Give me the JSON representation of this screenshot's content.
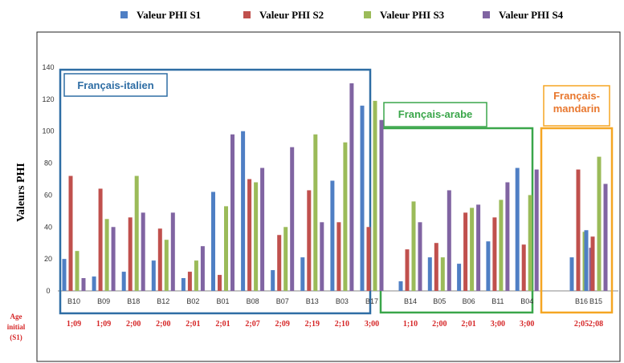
{
  "chart_data": {
    "type": "bar",
    "ylabel": "Valeurs PHI",
    "ylim": [
      0,
      140
    ],
    "yticks": [
      0,
      20,
      40,
      60,
      80,
      100,
      120,
      140
    ],
    "grid": false,
    "legend_position": "top",
    "series": [
      {
        "name": "Valeur PHI S1",
        "color": "#4f7fc4"
      },
      {
        "name": "Valeur PHI S2",
        "color": "#c0504d"
      },
      {
        "name": "Valeur PHI S3",
        "color": "#9bbb59"
      },
      {
        "name": "Valeur PHI S4",
        "color": "#8064a2"
      }
    ],
    "age_label_lines": [
      "Age",
      "initial",
      "(S1)"
    ],
    "groups": [
      {
        "label_lines": [
          "Français-italien"
        ],
        "color": "#2e6da4",
        "categories": [
          {
            "name": "B10",
            "age": "1;09",
            "values": [
              20,
              72,
              25,
              8
            ]
          },
          {
            "name": "B09",
            "age": "1;09",
            "values": [
              9,
              64,
              45,
              40
            ]
          },
          {
            "name": "B18",
            "age": "2;00",
            "values": [
              12,
              46,
              72,
              49
            ]
          },
          {
            "name": "B12",
            "age": "2;00",
            "values": [
              19,
              39,
              32,
              49
            ]
          },
          {
            "name": "B02",
            "age": "2;01",
            "values": [
              8,
              12,
              19,
              28
            ]
          },
          {
            "name": "B01",
            "age": "2;01",
            "values": [
              62,
              10,
              53,
              98
            ]
          },
          {
            "name": "B08",
            "age": "2;07",
            "values": [
              100,
              70,
              68,
              77
            ]
          },
          {
            "name": "B07",
            "age": "2;09",
            "values": [
              13,
              35,
              40,
              90
            ]
          },
          {
            "name": "B13",
            "age": "2;19",
            "values": [
              21,
              63,
              98,
              43
            ]
          },
          {
            "name": "B03",
            "age": "2;10",
            "values": [
              69,
              43,
              93,
              130
            ]
          },
          {
            "name": "B17",
            "age": "3;00",
            "values": [
              116,
              40,
              119,
              107
            ]
          }
        ]
      },
      {
        "label_lines": [
          "Français-arabe"
        ],
        "color": "#3aa64a",
        "categories": [
          {
            "name": "B14",
            "age": "1;10",
            "values": [
              6,
              26,
              56,
              43
            ]
          },
          {
            "name": "B05",
            "age": "2;00",
            "values": [
              21,
              30,
              21,
              63
            ]
          },
          {
            "name": "B06",
            "age": "2;01",
            "values": [
              17,
              49,
              52,
              54
            ]
          },
          {
            "name": "B11",
            "age": "3;00",
            "values": [
              31,
              46,
              57,
              68
            ]
          },
          {
            "name": "B04",
            "age": "3;00",
            "values": [
              77,
              29,
              60,
              76
            ]
          }
        ]
      },
      {
        "label_lines": [
          "Français-",
          "mandarin"
        ],
        "color": "#f5a623",
        "text_color": "#e8772e",
        "categories": [
          {
            "name": "B16",
            "age": "2;05",
            "values": [
              21,
              76,
              37,
              27
            ]
          },
          {
            "name": "B15",
            "age": "2;08",
            "values": [
              38,
              34,
              84,
              67
            ]
          }
        ]
      }
    ]
  }
}
